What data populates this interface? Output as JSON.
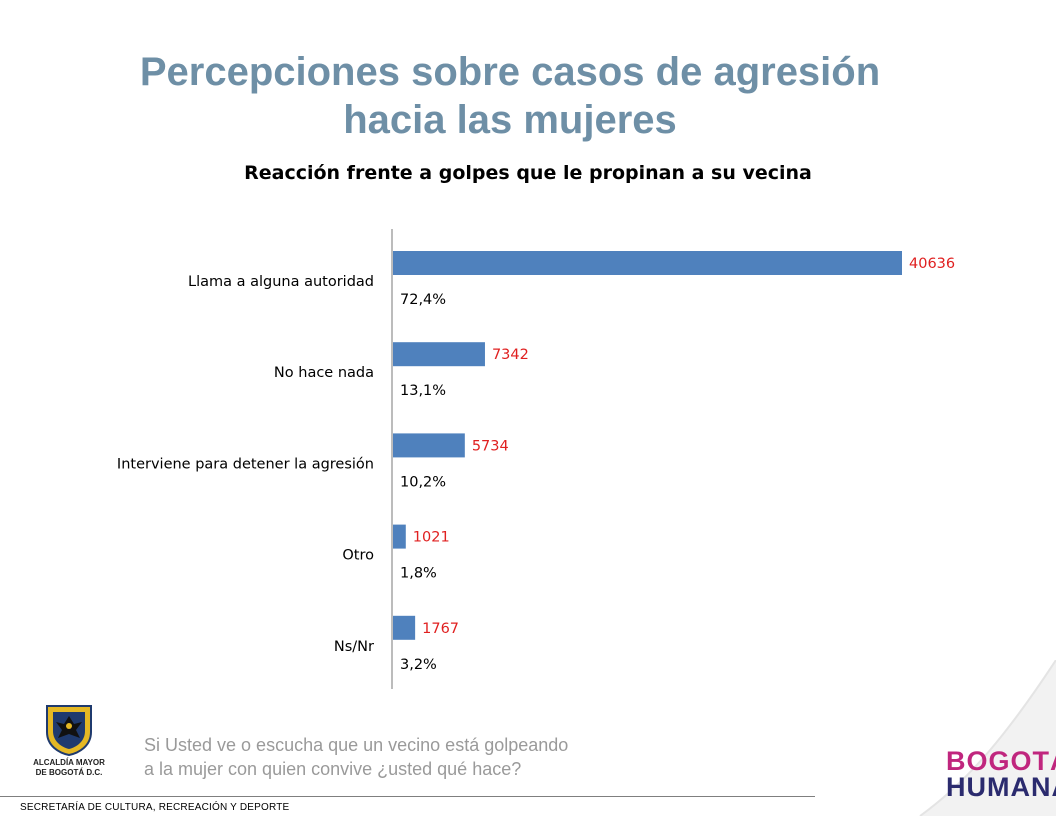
{
  "slide": {
    "title_line1": "Percepciones sobre casos de  agresión",
    "title_line2": "hacia las mujeres",
    "question_line1": "Si Usted ve o escucha que un vecino está golpeando",
    "question_line2": "a la mujer con quien convive ¿usted qué hace?",
    "footer": "SECRETARÍA DE CULTURA, RECREACIÓN Y DEPORTE",
    "logo_left_line1": "ALCALDÍA MAYOR",
    "logo_left_line2": "DE BOGOTÁ D.C.",
    "logo_right_line1": "BOGOTÁ",
    "logo_right_line2": "HUMANA"
  },
  "chart_data": {
    "type": "bar",
    "orientation": "horizontal",
    "title": "Reacción frente a golpes que le propinan a su vecina",
    "categories": [
      "Llama a alguna autoridad",
      "No hace nada",
      "Interviene para detener la agresión",
      "Otro",
      "Ns/Nr"
    ],
    "values": [
      40636,
      7342,
      5734,
      1021,
      1767
    ],
    "percent_labels": [
      "72,4%",
      "13,1%",
      "10,2%",
      "1,8%",
      "3,2%"
    ],
    "bar_color": "#4f81bd",
    "value_label_color": "#e02020",
    "grid": false,
    "legend": "none"
  }
}
